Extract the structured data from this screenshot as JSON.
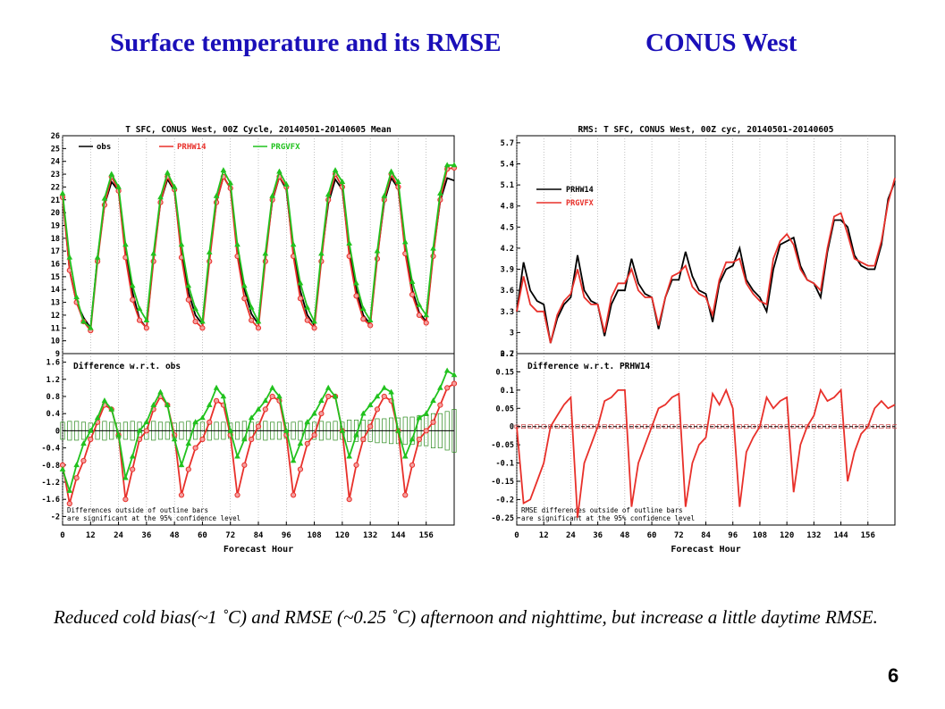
{
  "slide": {
    "title_left": "Surface temperature and its RMSE",
    "title_right": "CONUS West",
    "caption": "Reduced cold bias(~1 ˚C) and RMSE (~0.25 ˚C) afternoon and nighttime, but increase a little daytime RMSE.",
    "page_number": "6"
  },
  "colors": {
    "obs": "#000000",
    "prhw14": "#e8302a",
    "prgvfx": "#21c21e",
    "bar": "#2a8a1c",
    "title": "#1a0fb8"
  },
  "chart_data": [
    {
      "type": "line",
      "title": "T SFC, CONUS West, 00Z Cycle, 20140501-20140605 Mean",
      "xlabel": "Forecast Hour",
      "x": [
        0,
        3,
        6,
        9,
        12,
        15,
        18,
        21,
        24,
        27,
        30,
        33,
        36,
        39,
        42,
        45,
        48,
        51,
        54,
        57,
        60,
        63,
        66,
        69,
        72,
        75,
        78,
        81,
        84,
        87,
        90,
        93,
        96,
        99,
        102,
        105,
        108,
        111,
        114,
        117,
        120,
        123,
        126,
        129,
        132,
        135,
        138,
        141,
        144,
        147,
        150,
        153,
        156,
        159,
        162,
        165,
        168
      ],
      "xticks": [
        0,
        12,
        24,
        36,
        48,
        60,
        72,
        84,
        96,
        108,
        120,
        132,
        144,
        156
      ],
      "xlim": [
        0,
        168
      ],
      "top": {
        "ylim": [
          9,
          26
        ],
        "yticks": [
          9,
          10,
          11,
          12,
          13,
          14,
          15,
          16,
          17,
          18,
          19,
          20,
          21,
          22,
          23,
          24,
          25,
          26
        ],
        "legend": [
          "obs",
          "PRHW14",
          "PRGVFX"
        ],
        "series": [
          {
            "name": "obs",
            "values": [
              21.5,
              15.5,
              13.0,
              11.8,
              11.0,
              16.5,
              20.6,
              22.4,
              21.7,
              16.8,
              13.8,
              11.7,
              11.0,
              16.5,
              20.8,
              22.6,
              21.7,
              16.9,
              13.8,
              12.0,
              11.3,
              16.6,
              20.8,
              22.8,
              21.9,
              17.0,
              14.0,
              12.1,
              11.3,
              16.6,
              20.9,
              22.8,
              21.8,
              16.9,
              13.9,
              12.0,
              11.2,
              16.5,
              20.7,
              22.6,
              21.8,
              17.0,
              14.0,
              12.0,
              11.3,
              16.6,
              20.8,
              22.7,
              21.9,
              17.1,
              14.0,
              12.2,
              11.5,
              16.8,
              20.9,
              22.7,
              22.5
            ]
          },
          {
            "name": "PRHW14",
            "values": [
              21.2,
              15.5,
              13.0,
              11.5,
              10.8,
              16.2,
              20.6,
              22.8,
              21.7,
              16.5,
              13.2,
              11.6,
              11.0,
              16.2,
              20.8,
              22.8,
              21.8,
              16.5,
              13.2,
              11.5,
              11.0,
              16.2,
              20.8,
              22.8,
              21.9,
              16.6,
              13.3,
              11.6,
              11.0,
              16.2,
              21.0,
              22.8,
              22.0,
              16.6,
              13.3,
              11.6,
              11.0,
              16.2,
              21.0,
              23.0,
              22.0,
              16.6,
              13.5,
              11.7,
              11.2,
              16.4,
              21.0,
              23.0,
              22.0,
              16.8,
              13.6,
              12.0,
              11.4,
              16.6,
              21.0,
              23.4,
              23.5
            ]
          },
          {
            "name": "PRGVFX",
            "values": [
              21.5,
              16.5,
              13.4,
              11.5,
              11.0,
              16.5,
              21.1,
              23.0,
              22.0,
              17.5,
              14.3,
              12.5,
              11.6,
              16.8,
              21.2,
              23.1,
              22.0,
              17.5,
              14.3,
              12.5,
              11.5,
              16.9,
              21.3,
              23.3,
              22.3,
              17.5,
              14.3,
              12.6,
              11.5,
              16.8,
              21.3,
              23.2,
              22.2,
              17.5,
              14.5,
              12.6,
              11.5,
              16.8,
              21.4,
              23.3,
              22.4,
              17.6,
              14.5,
              12.5,
              11.6,
              17.0,
              21.3,
              23.2,
              22.4,
              17.7,
              14.6,
              12.8,
              12.0,
              17.2,
              21.5,
              23.7,
              23.7
            ]
          }
        ]
      },
      "bottom": {
        "title": "Difference w.r.t. obs",
        "ylim": [
          -2.2,
          1.8
        ],
        "yticks": [
          -2,
          -1.6,
          -1.2,
          -0.8,
          -0.4,
          0,
          0.4,
          0.8,
          1.2,
          1.6
        ],
        "note": [
          "Differences outside of outline bars",
          "are significant at the 95% confidence level"
        ],
        "series": [
          {
            "name": "PRHW14",
            "values": [
              -0.8,
              -1.7,
              -1.1,
              -0.7,
              -0.2,
              0.2,
              0.6,
              0.5,
              -0.1,
              -1.6,
              -0.9,
              -0.2,
              0.0,
              0.5,
              0.8,
              0.6,
              -0.1,
              -1.5,
              -0.9,
              -0.4,
              -0.2,
              0.2,
              0.7,
              0.6,
              -0.1,
              -1.5,
              -0.8,
              -0.2,
              0.1,
              0.5,
              0.8,
              0.7,
              -0.1,
              -1.5,
              -0.9,
              -0.3,
              -0.1,
              0.4,
              0.8,
              0.8,
              0.0,
              -1.6,
              -0.8,
              -0.2,
              0.1,
              0.5,
              0.8,
              0.7,
              0.0,
              -1.5,
              -0.8,
              -0.2,
              0.0,
              0.2,
              0.6,
              1.0,
              1.1
            ]
          },
          {
            "name": "PRGVFX",
            "values": [
              -0.9,
              -1.4,
              -0.8,
              -0.3,
              0.0,
              0.3,
              0.7,
              0.5,
              -0.1,
              -1.1,
              -0.6,
              0.0,
              0.2,
              0.6,
              0.9,
              0.6,
              -0.2,
              -0.8,
              -0.3,
              0.2,
              0.3,
              0.6,
              1.0,
              0.8,
              0.0,
              -0.6,
              -0.2,
              0.3,
              0.5,
              0.7,
              1.0,
              0.8,
              0.0,
              -0.7,
              -0.3,
              0.2,
              0.4,
              0.7,
              1.0,
              0.8,
              0.0,
              -0.6,
              -0.1,
              0.4,
              0.6,
              0.8,
              1.0,
              0.9,
              0.0,
              -0.6,
              -0.2,
              0.3,
              0.4,
              0.7,
              1.0,
              1.4,
              1.3
            ]
          }
        ],
        "bars_halfwidth": [
          0.2,
          0.22,
          0.22,
          0.2,
          0.18,
          0.2,
          0.22,
          0.2,
          0.18,
          0.2,
          0.22,
          0.2,
          0.2,
          0.22,
          0.2,
          0.2,
          0.18,
          0.2,
          0.22,
          0.2,
          0.2,
          0.22,
          0.2,
          0.2,
          0.18,
          0.2,
          0.22,
          0.2,
          0.2,
          0.22,
          0.2,
          0.2,
          0.18,
          0.2,
          0.22,
          0.2,
          0.2,
          0.22,
          0.2,
          0.22,
          0.2,
          0.25,
          0.25,
          0.25,
          0.25,
          0.28,
          0.28,
          0.3,
          0.3,
          0.32,
          0.32,
          0.35,
          0.35,
          0.4,
          0.4,
          0.45,
          0.5
        ]
      }
    },
    {
      "type": "line",
      "title": "RMS: T SFC, CONUS West, 00Z cyc, 20140501-20140605",
      "xlabel": "Forecast Hour",
      "x": [
        0,
        3,
        6,
        9,
        12,
        15,
        18,
        21,
        24,
        27,
        30,
        33,
        36,
        39,
        42,
        45,
        48,
        51,
        54,
        57,
        60,
        63,
        66,
        69,
        72,
        75,
        78,
        81,
        84,
        87,
        90,
        93,
        96,
        99,
        102,
        105,
        108,
        111,
        114,
        117,
        120,
        123,
        126,
        129,
        132,
        135,
        138,
        141,
        144,
        147,
        150,
        153,
        156,
        159,
        162,
        165,
        168
      ],
      "xticks": [
        0,
        12,
        24,
        36,
        48,
        60,
        72,
        84,
        96,
        108,
        120,
        132,
        144,
        156
      ],
      "xlim": [
        0,
        168
      ],
      "top": {
        "ylim": [
          2.7,
          5.8
        ],
        "yticks": [
          2.7,
          3,
          3.3,
          3.6,
          3.9,
          4.2,
          4.5,
          4.8,
          5.1,
          5.4,
          5.7
        ],
        "legend": [
          "PRHW14",
          "PRGVFX"
        ],
        "series": [
          {
            "name": "PRHW14",
            "values": [
              3.3,
              4.0,
              3.6,
              3.45,
              3.4,
              2.85,
              3.2,
              3.4,
              3.5,
              4.1,
              3.6,
              3.45,
              3.4,
              2.95,
              3.4,
              3.6,
              3.6,
              4.05,
              3.7,
              3.55,
              3.5,
              3.05,
              3.5,
              3.75,
              3.75,
              4.15,
              3.8,
              3.6,
              3.55,
              3.15,
              3.7,
              3.9,
              3.95,
              4.2,
              3.75,
              3.6,
              3.5,
              3.3,
              3.9,
              4.25,
              4.3,
              4.35,
              3.95,
              3.75,
              3.7,
              3.5,
              4.15,
              4.6,
              4.6,
              4.5,
              4.1,
              3.95,
              3.9,
              3.9,
              4.25,
              4.9,
              5.15
            ]
          },
          {
            "name": "PRGVFX",
            "values": [
              3.3,
              3.8,
              3.4,
              3.3,
              3.3,
              2.85,
              3.25,
              3.45,
              3.55,
              3.9,
              3.5,
              3.4,
              3.4,
              3.0,
              3.5,
              3.7,
              3.7,
              3.9,
              3.6,
              3.5,
              3.5,
              3.1,
              3.5,
              3.8,
              3.85,
              3.95,
              3.65,
              3.55,
              3.5,
              3.25,
              3.75,
              4.0,
              4.0,
              4.05,
              3.7,
              3.55,
              3.45,
              3.4,
              4.05,
              4.3,
              4.4,
              4.25,
              3.9,
              3.75,
              3.7,
              3.6,
              4.2,
              4.65,
              4.7,
              4.4,
              4.05,
              4.0,
              3.95,
              3.95,
              4.3,
              4.85,
              5.2
            ]
          }
        ]
      },
      "bottom": {
        "title": "Difference w.r.t. PRHW14",
        "ylim": [
          -0.27,
          0.2
        ],
        "yticks": [
          -0.25,
          -0.2,
          -0.15,
          -0.1,
          -0.05,
          0,
          0.05,
          0.1,
          0.15,
          0.2
        ],
        "note": [
          "RMSE differences outside of outline bars",
          "are significant at the 95% confidence level"
        ],
        "series": [
          {
            "name": "PRGVFX",
            "values": [
              0.0,
              -0.21,
              -0.2,
              -0.15,
              -0.1,
              0.0,
              0.03,
              0.06,
              0.08,
              -0.25,
              -0.1,
              -0.05,
              0.0,
              0.07,
              0.08,
              0.1,
              0.1,
              -0.22,
              -0.1,
              -0.05,
              0.0,
              0.05,
              0.06,
              0.08,
              0.09,
              -0.22,
              -0.1,
              -0.05,
              -0.03,
              0.09,
              0.06,
              0.1,
              0.05,
              -0.22,
              -0.07,
              -0.03,
              0.0,
              0.08,
              0.05,
              0.07,
              0.08,
              -0.18,
              -0.05,
              0.0,
              0.03,
              0.1,
              0.07,
              0.08,
              0.1,
              -0.15,
              -0.07,
              -0.02,
              0.0,
              0.05,
              0.07,
              0.05,
              0.06
            ]
          }
        ],
        "bars_halfwidth": [
          0.004,
          0.005,
          0.005,
          0.005,
          0.005,
          0.005,
          0.005,
          0.005,
          0.005,
          0.005,
          0.005,
          0.005,
          0.005,
          0.005,
          0.005,
          0.005,
          0.005,
          0.005,
          0.005,
          0.005,
          0.005,
          0.005,
          0.005,
          0.005,
          0.005,
          0.005,
          0.005,
          0.005,
          0.005,
          0.005,
          0.005,
          0.005,
          0.005,
          0.005,
          0.005,
          0.005,
          0.005,
          0.005,
          0.005,
          0.005,
          0.005,
          0.005,
          0.005,
          0.005,
          0.005,
          0.005,
          0.005,
          0.005,
          0.005,
          0.005,
          0.005,
          0.005,
          0.005,
          0.005,
          0.005,
          0.005,
          0.005
        ]
      }
    }
  ]
}
